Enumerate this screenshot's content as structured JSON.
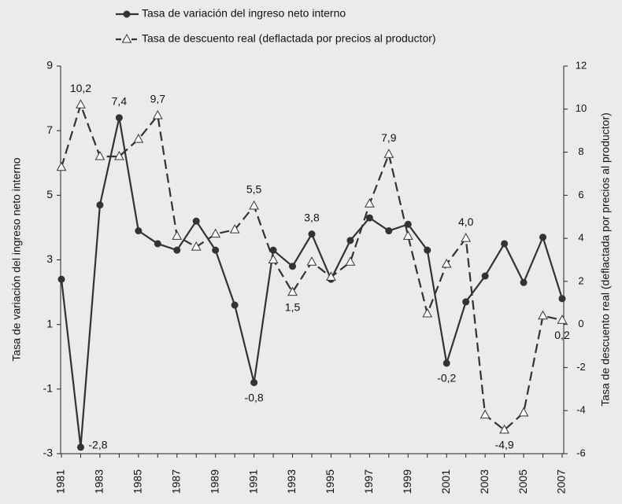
{
  "chart_data": {
    "type": "line",
    "categories": [
      "1981",
      null,
      "1983",
      null,
      "1985",
      null,
      "1987",
      null,
      "1989",
      null,
      "1991",
      null,
      "1993",
      null,
      "1995",
      null,
      "1997",
      null,
      "1999",
      null,
      "2001",
      null,
      "2003",
      null,
      "2005",
      null,
      "2007"
    ],
    "series": [
      {
        "name": "Tasa de variación del ingreso neto interno",
        "color": "#333333",
        "marker": "circle",
        "dash": false,
        "axis": "y",
        "values": [
          2.4,
          -2.8,
          4.7,
          7.4,
          3.9,
          3.5,
          3.3,
          4.2,
          3.3,
          1.6,
          -0.8,
          3.3,
          2.8,
          3.8,
          2.4,
          3.6,
          4.3,
          3.9,
          4.1,
          3.3,
          -0.2,
          1.7,
          2.5,
          3.5,
          2.3,
          3.7,
          1.8
        ],
        "value_labels": [
          null,
          "-2,8",
          null,
          "7,4",
          null,
          null,
          null,
          null,
          null,
          null,
          "-0,8",
          null,
          null,
          "3,8",
          null,
          null,
          null,
          null,
          null,
          null,
          "-0,2",
          null,
          null,
          null,
          null,
          null,
          null
        ]
      },
      {
        "name": "Tasa de descuento real (deflactada por precios al productor)",
        "color": "#333333",
        "marker": "triangle",
        "dash": true,
        "axis": "y2",
        "values": [
          7.3,
          10.2,
          7.8,
          7.8,
          8.6,
          9.7,
          4.1,
          3.6,
          4.2,
          4.4,
          5.5,
          3.0,
          1.5,
          2.9,
          2.2,
          2.9,
          5.6,
          7.9,
          4.1,
          0.5,
          2.8,
          4.0,
          -4.2,
          -4.9,
          -4.1,
          0.4,
          0.2
        ],
        "value_labels": [
          null,
          "10,2",
          null,
          null,
          null,
          "9,7",
          null,
          null,
          null,
          null,
          "5,5",
          null,
          "1,5",
          null,
          null,
          null,
          null,
          "7,9",
          null,
          null,
          null,
          "4,0",
          null,
          "-4,9",
          null,
          null,
          "0,2"
        ]
      }
    ],
    "ylabel": "Tasa de variación del ingreso neto interno",
    "y2label": "Tasa de descuento real (deflactada por precios al productor)",
    "ylim": [
      -3,
      9
    ],
    "yticks": [
      -3,
      -1,
      1,
      3,
      5,
      7,
      9
    ],
    "y2lim": [
      -6,
      12
    ],
    "y2ticks": [
      -6,
      -4,
      -2,
      0,
      2,
      4,
      6,
      8,
      10,
      12
    ],
    "legend": "top",
    "grid": false
  }
}
